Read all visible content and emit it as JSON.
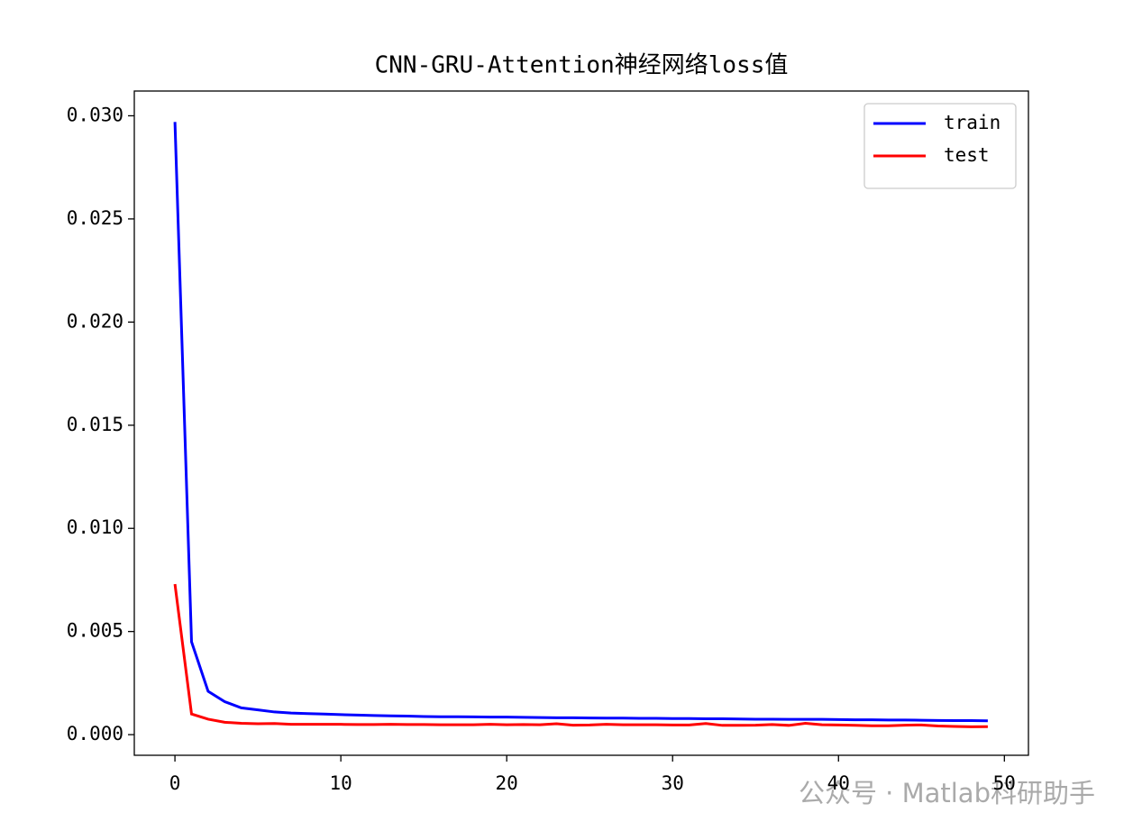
{
  "chart_data": {
    "type": "line",
    "title": "CNN-GRU-Attention神经网络loss值",
    "x": [
      0,
      1,
      2,
      3,
      4,
      5,
      6,
      7,
      8,
      9,
      10,
      11,
      12,
      13,
      14,
      15,
      16,
      17,
      18,
      19,
      20,
      21,
      22,
      23,
      24,
      25,
      26,
      27,
      28,
      29,
      30,
      31,
      32,
      33,
      34,
      35,
      36,
      37,
      38,
      39,
      40,
      41,
      42,
      43,
      44,
      45,
      46,
      47,
      48,
      49
    ],
    "series": [
      {
        "name": "train",
        "color": "#0000ff",
        "values": [
          0.0297,
          0.0045,
          0.0021,
          0.0016,
          0.0013,
          0.0012,
          0.0011,
          0.00105,
          0.00102,
          0.001,
          0.00097,
          0.00095,
          0.00093,
          0.00091,
          0.0009,
          0.00088,
          0.00087,
          0.00087,
          0.00086,
          0.00085,
          0.00085,
          0.00084,
          0.00083,
          0.00082,
          0.00082,
          0.00081,
          0.0008,
          0.0008,
          0.00079,
          0.00079,
          0.00078,
          0.00078,
          0.00077,
          0.00077,
          0.00076,
          0.00075,
          0.00075,
          0.00074,
          0.00074,
          0.00074,
          0.00073,
          0.00072,
          0.00072,
          0.00071,
          0.00071,
          0.0007,
          0.00069,
          0.00068,
          0.00068,
          0.00067
        ]
      },
      {
        "name": "test",
        "color": "#ff0000",
        "values": [
          0.0073,
          0.001,
          0.00075,
          0.0006,
          0.00055,
          0.00053,
          0.00054,
          0.0005,
          0.0005,
          0.0005,
          0.0005,
          0.00049,
          0.00049,
          0.0005,
          0.00049,
          0.00049,
          0.00048,
          0.00048,
          0.00048,
          0.0005,
          0.00048,
          0.00049,
          0.00048,
          0.00053,
          0.00046,
          0.00047,
          0.0005,
          0.00048,
          0.00048,
          0.00048,
          0.00047,
          0.00047,
          0.00054,
          0.00045,
          0.00045,
          0.00046,
          0.00049,
          0.00045,
          0.00055,
          0.00048,
          0.00047,
          0.00045,
          0.00043,
          0.00043,
          0.00046,
          0.00047,
          0.00042,
          0.0004,
          0.00038,
          0.00039
        ]
      }
    ],
    "xlim": [
      -2.45,
      51.45
    ],
    "xticks": [
      0,
      10,
      20,
      30,
      40,
      50
    ],
    "ylim": [
      -0.001,
      0.0312
    ],
    "yticks": [
      {
        "value": 0,
        "label": "0.000"
      },
      {
        "value": 0.005,
        "label": "0.005"
      },
      {
        "value": 0.01,
        "label": "0.010"
      },
      {
        "value": 0.015,
        "label": "0.015"
      },
      {
        "value": 0.02,
        "label": "0.020"
      },
      {
        "value": 0.025,
        "label": "0.025"
      },
      {
        "value": 0.03,
        "label": "0.030"
      }
    ],
    "grid": false,
    "legend": "upper right"
  },
  "watermark": "公众号 · Matlab科研助手"
}
